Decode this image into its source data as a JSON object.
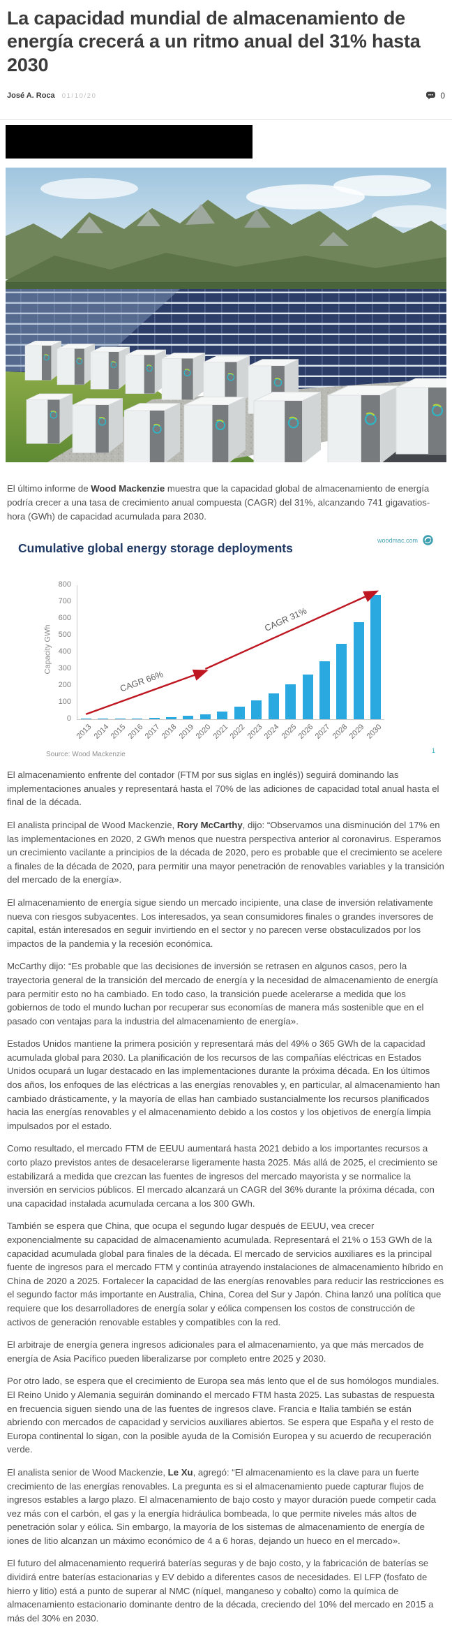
{
  "article": {
    "title": "La capacidad mundial de almacenamiento de energía crecerá a un ritmo anual del 31% hasta 2030",
    "author": "José A. Roca",
    "date": "01/10/20",
    "comments_count": "0",
    "intro_paragraphs": [
      [
        {
          "t": "El último informe de ",
          "b": false
        },
        {
          "t": "Wood Mackenzie",
          "b": true
        },
        {
          "t": " muestra que la capacidad global de almacenamiento de energía podría crecer a una tasa de crecimiento anual compuesta (CAGR) del 31%, alcanzando 741 gigavatios-hora (GWh) de capacidad acumulada para 2030.",
          "b": false
        }
      ]
    ],
    "body_paragraphs": [
      [
        {
          "t": "El almacenamiento enfrente del contador (FTM por sus siglas en inglés)) seguirá dominando las implementaciones anuales y representará hasta el 70% de las adiciones de capacidad total anual hasta el final de la década.",
          "b": false
        }
      ],
      [
        {
          "t": "El analista principal de Wood Mackenzie, ",
          "b": false
        },
        {
          "t": "Rory McCarthy",
          "b": true
        },
        {
          "t": ", dijo: “Observamos una disminución del 17% en las implementaciones en 2020, 2 GWh menos que nuestra perspectiva anterior al coronavirus. Esperamos un crecimiento vacilante a principios de la década de 2020, pero es probable que el crecimiento se acelere a finales de la década de 2020, para permitir una mayor penetración de renovables variables y la transición del mercado de la energía».",
          "b": false
        }
      ],
      [
        {
          "t": "El almacenamiento de energía sigue siendo un mercado incipiente, una clase de inversión relativamente nueva con riesgos subyacentes. Los interesados, ya sean consumidores finales o grandes inversores de capital, están interesados en seguir invirtiendo en el sector y no parecen verse obstaculizados por los impactos de la pandemia y la recesión económica.",
          "b": false
        }
      ],
      [
        {
          "t": "McCarthy dijo: “Es probable que las decisiones de inversión se retrasen en algunos casos, pero la trayectoria general de la transición del mercado de energía y la necesidad de almacenamiento de energía para permitir esto no ha cambiado. En todo caso, la transición puede acelerarse a medida que los gobiernos de todo el mundo luchan por recuperar sus economías de manera más sostenible que en el pasado con ventajas para la industria del almacenamiento de energía».",
          "b": false
        }
      ],
      [
        {
          "t": "Estados Unidos mantiene la primera posición y representará más del 49% o 365 GWh de la capacidad acumulada global para 2030. La planificación de los recursos de las compañías eléctricas en Estados Unidos ocupará un lugar destacado en las implementaciones durante la próxima década. En los últimos dos años, los enfoques de las eléctricas a las energías renovables y, en particular, al almacenamiento han cambiado drásticamente, y la mayoría de ellas han cambiado sustancialmente los recursos planificados hacia las energías renovables y el almacenamiento debido a los costos y los objetivos de energía limpia impulsados por el estado.",
          "b": false
        }
      ],
      [
        {
          "t": "Como resultado, el mercado FTM de EEUU aumentará hasta 2021 debido a los importantes recursos a corto plazo previstos antes de desacelerarse ligeramente hasta 2025. Más allá de 2025, el crecimiento se estabilizará a medida que crezcan las fuentes de ingresos del mercado mayorista y se normalice la inversión en servicios públicos. El mercado alcanzará un CAGR del 36% durante la próxima década, con una capacidad instalada acumulada cercana a los 300 GWh.",
          "b": false
        }
      ],
      [
        {
          "t": "También se espera que China, que ocupa el segundo lugar después de EEUU, vea crecer exponencialmente su capacidad de almacenamiento acumulada. Representará el 21% o 153 GWh de la capacidad acumulada global para finales de la década. El mercado de servicios auxiliares es la principal fuente de ingresos para el mercado FTM y continúa atrayendo instalaciones de almacenamiento híbrido en China de 2020 a 2025. Fortalecer la capacidad de las energías renovables para reducir las restricciones es el segundo factor más importante en Australia, China, Corea del Sur y Japón. China lanzó una política que requiere que los desarrolladores de energía solar y eólica compensen los costos de construcción de activos de generación renovable estables y compatibles con la red.",
          "b": false
        }
      ],
      [
        {
          "t": "El arbitraje de energía genera ingresos adicionales para el almacenamiento, ya que más mercados de energía de Asia Pacífico pueden liberalizarse por completo entre 2025 y 2030.",
          "b": false
        }
      ],
      [
        {
          "t": "Por otro lado, se espera que el crecimiento de Europa sea más lento que el de sus homólogos mundiales. El Reino Unido y Alemania seguirán dominando el mercado FTM hasta 2025. Las subastas de respuesta en frecuencia siguen siendo una de las fuentes de ingresos clave. Francia e Italia también se están abriendo con mercados de capacidad y servicios auxiliares abiertos. Se espera que España y el resto de Europa continental lo sigan, con la posible ayuda de la Comisión Europea y su acuerdo de recuperación verde.",
          "b": false
        }
      ],
      [
        {
          "t": "El analista senior de Wood Mackenzie, ",
          "b": false
        },
        {
          "t": "Le Xu",
          "b": true
        },
        {
          "t": ", agregó: “El almacenamiento es la clave para un fuerte crecimiento de las energías renovables. La pregunta es si el almacenamiento puede capturar flujos de ingresos estables a largo plazo. El almacenamiento de bajo costo y mayor duración puede competir cada vez más con el carbón, el gas y la energía hidráulica bombeada, lo que permite niveles más altos de penetración solar y eólica. Sin embargo, la mayoría de los sistemas de almacenamiento de energía de iones de litio alcanzan un máximo económico de 4 a 6 horas, dejando un hueco en el mercado».",
          "b": false
        }
      ],
      [
        {
          "t": "El futuro del almacenamiento requerirá baterías seguras y de bajo costo, y la fabricación de baterías se dividirá entre baterías estacionarias y EV debido a diferentes casos de necesidades. El LFP (fosfato de hierro y litio) está a punto de superar al NMC (níquel, manganeso y cobalto) como la química de almacenamiento estacionario dominante dentro de la década, creciendo del 10% del mercado en 2015 a más del 30% en 2030.",
          "b": false
        }
      ]
    ]
  },
  "hero": {
    "image_name": "solar-farm-with-battery-storage-3d-render"
  },
  "icons": {
    "comment_bubble": "comment-bubble-icon",
    "woodmac_logo": "woodmac-circle-logo"
  },
  "chart_data": {
    "type": "bar",
    "title": "Cumulative global energy storage deployments",
    "brand": "woodmac.com",
    "source": "Source: Wood Mackenzie",
    "footnote_marker": "1",
    "ylabel": "Capacity GWh",
    "ylim": [
      0,
      800
    ],
    "ytick_step": 100,
    "grid": false,
    "legend": "none",
    "categories": [
      "2013",
      "2014",
      "2015",
      "2016",
      "2017",
      "2018",
      "2019",
      "2020",
      "2021",
      "2022",
      "2023",
      "2024",
      "2025",
      "2026",
      "2027",
      "2028",
      "2029",
      "2030"
    ],
    "values": [
      2,
      3,
      5,
      7,
      10,
      15,
      21,
      29,
      48,
      75,
      112,
      154,
      208,
      267,
      346,
      450,
      580,
      741
    ],
    "bar_color": "#2aa9e0",
    "arrow_color": "#bf1722",
    "title_color": "#1f3864",
    "annotations": [
      {
        "label": "CAGR 66%",
        "from": {
          "year": "2013",
          "value": 30
        },
        "to": {
          "year": "2020",
          "value": 287
        }
      },
      {
        "label": "CAGR 31%",
        "from": {
          "year": "2020",
          "value": 300
        },
        "to": {
          "year": "2030",
          "value": 760
        }
      }
    ]
  }
}
